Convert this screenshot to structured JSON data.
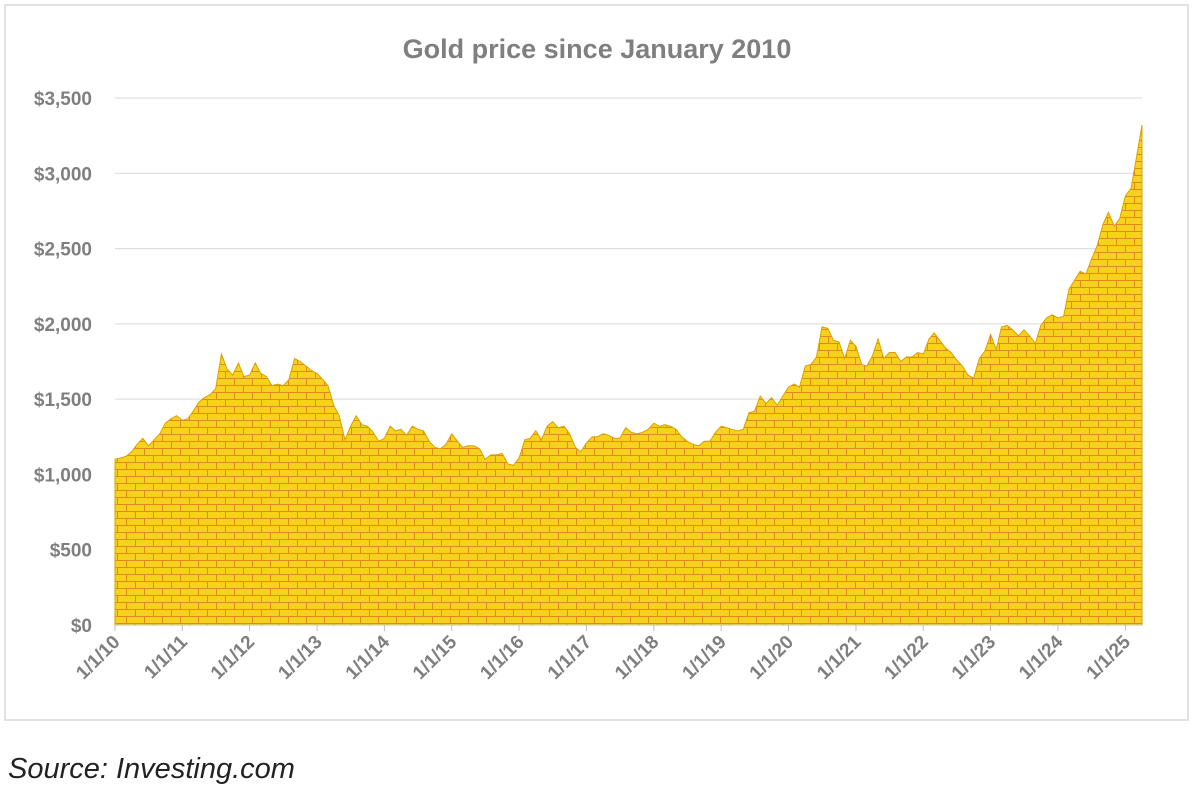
{
  "chart_data": {
    "type": "area",
    "title": "Gold price since January 2010",
    "source": "Source: Investing.com",
    "color": "#f7d21c",
    "x": [
      "2010-01-01",
      "2010-02-01",
      "2010-03-01",
      "2010-04-01",
      "2010-05-01",
      "2010-06-01",
      "2010-07-01",
      "2010-08-01",
      "2010-09-01",
      "2010-10-01",
      "2010-11-01",
      "2010-12-01",
      "2011-01-01",
      "2011-02-01",
      "2011-03-01",
      "2011-04-01",
      "2011-05-01",
      "2011-06-01",
      "2011-07-01",
      "2011-08-01",
      "2011-09-01",
      "2011-10-01",
      "2011-11-01",
      "2011-12-01",
      "2012-01-01",
      "2012-02-01",
      "2012-03-01",
      "2012-04-01",
      "2012-05-01",
      "2012-06-01",
      "2012-07-01",
      "2012-08-01",
      "2012-09-01",
      "2012-10-01",
      "2012-11-01",
      "2012-12-01",
      "2013-01-01",
      "2013-02-01",
      "2013-03-01",
      "2013-04-01",
      "2013-05-01",
      "2013-06-01",
      "2013-07-01",
      "2013-08-01",
      "2013-09-01",
      "2013-10-01",
      "2013-11-01",
      "2013-12-01",
      "2014-01-01",
      "2014-02-01",
      "2014-03-01",
      "2014-04-01",
      "2014-05-01",
      "2014-06-01",
      "2014-07-01",
      "2014-08-01",
      "2014-09-01",
      "2014-10-01",
      "2014-11-01",
      "2014-12-01",
      "2015-01-01",
      "2015-02-01",
      "2015-03-01",
      "2015-04-01",
      "2015-05-01",
      "2015-06-01",
      "2015-07-01",
      "2015-08-01",
      "2015-09-01",
      "2015-10-01",
      "2015-11-01",
      "2015-12-01",
      "2016-01-01",
      "2016-02-01",
      "2016-03-01",
      "2016-04-01",
      "2016-05-01",
      "2016-06-01",
      "2016-07-01",
      "2016-08-01",
      "2016-09-01",
      "2016-10-01",
      "2016-11-01",
      "2016-12-01",
      "2017-01-01",
      "2017-02-01",
      "2017-03-01",
      "2017-04-01",
      "2017-05-01",
      "2017-06-01",
      "2017-07-01",
      "2017-08-01",
      "2017-09-01",
      "2017-10-01",
      "2017-11-01",
      "2017-12-01",
      "2018-01-01",
      "2018-02-01",
      "2018-03-01",
      "2018-04-01",
      "2018-05-01",
      "2018-06-01",
      "2018-07-01",
      "2018-08-01",
      "2018-09-01",
      "2018-10-01",
      "2018-11-01",
      "2018-12-01",
      "2019-01-01",
      "2019-02-01",
      "2019-03-01",
      "2019-04-01",
      "2019-05-01",
      "2019-06-01",
      "2019-07-01",
      "2019-08-01",
      "2019-09-01",
      "2019-10-01",
      "2019-11-01",
      "2019-12-01",
      "2020-01-01",
      "2020-02-01",
      "2020-03-01",
      "2020-04-01",
      "2020-05-01",
      "2020-06-01",
      "2020-07-01",
      "2020-08-01",
      "2020-09-01",
      "2020-10-01",
      "2020-11-01",
      "2020-12-01",
      "2021-01-01",
      "2021-02-01",
      "2021-03-01",
      "2021-04-01",
      "2021-05-01",
      "2021-06-01",
      "2021-07-01",
      "2021-08-01",
      "2021-09-01",
      "2021-10-01",
      "2021-11-01",
      "2021-12-01",
      "2022-01-01",
      "2022-02-01",
      "2022-03-01",
      "2022-04-01",
      "2022-05-01",
      "2022-06-01",
      "2022-07-01",
      "2022-08-01",
      "2022-09-01",
      "2022-10-01",
      "2022-11-01",
      "2022-12-01",
      "2023-01-01",
      "2023-02-01",
      "2023-03-01",
      "2023-04-01",
      "2023-05-01",
      "2023-06-01",
      "2023-07-01",
      "2023-08-01",
      "2023-09-01",
      "2023-10-01",
      "2023-11-01",
      "2023-12-01",
      "2024-01-01",
      "2024-02-01",
      "2024-03-01",
      "2024-04-01",
      "2024-05-01",
      "2024-06-01",
      "2024-07-01",
      "2024-08-01",
      "2024-09-01",
      "2024-10-01",
      "2024-11-01",
      "2024-12-01",
      "2025-01-01",
      "2025-02-01",
      "2025-03-01",
      "2025-04-01"
    ],
    "values": [
      1100,
      1110,
      1120,
      1150,
      1200,
      1240,
      1190,
      1230,
      1270,
      1340,
      1370,
      1390,
      1360,
      1370,
      1420,
      1480,
      1510,
      1530,
      1570,
      1800,
      1700,
      1660,
      1740,
      1650,
      1660,
      1740,
      1670,
      1650,
      1590,
      1600,
      1590,
      1630,
      1770,
      1750,
      1720,
      1690,
      1670,
      1630,
      1590,
      1460,
      1390,
      1230,
      1320,
      1390,
      1330,
      1320,
      1280,
      1220,
      1240,
      1320,
      1290,
      1300,
      1260,
      1320,
      1300,
      1290,
      1220,
      1180,
      1170,
      1200,
      1270,
      1220,
      1180,
      1190,
      1190,
      1170,
      1100,
      1130,
      1130,
      1140,
      1070,
      1060,
      1110,
      1230,
      1240,
      1290,
      1230,
      1320,
      1350,
      1310,
      1320,
      1270,
      1180,
      1150,
      1210,
      1250,
      1250,
      1270,
      1260,
      1240,
      1240,
      1310,
      1280,
      1270,
      1280,
      1300,
      1340,
      1320,
      1330,
      1320,
      1300,
      1250,
      1220,
      1200,
      1190,
      1220,
      1220,
      1280,
      1320,
      1310,
      1300,
      1290,
      1300,
      1410,
      1420,
      1520,
      1470,
      1510,
      1460,
      1520,
      1580,
      1600,
      1580,
      1720,
      1730,
      1780,
      1980,
      1970,
      1890,
      1880,
      1770,
      1890,
      1850,
      1730,
      1720,
      1790,
      1900,
      1770,
      1810,
      1810,
      1750,
      1780,
      1780,
      1810,
      1800,
      1900,
      1940,
      1890,
      1840,
      1810,
      1760,
      1720,
      1660,
      1640,
      1770,
      1820,
      1930,
      1830,
      1980,
      1990,
      1960,
      1920,
      1960,
      1920,
      1870,
      1990,
      2040,
      2060,
      2040,
      2050,
      2230,
      2290,
      2350,
      2330,
      2430,
      2520,
      2660,
      2740,
      2650,
      2700,
      2850,
      2900,
      3100,
      3320
    ],
    "xlim": [
      "2010-01-01",
      "2025-04-01"
    ],
    "xticks": [
      {
        "value": "2010-01-01",
        "label": "1/1/10"
      },
      {
        "value": "2011-01-01",
        "label": "1/1/11"
      },
      {
        "value": "2012-01-01",
        "label": "1/1/12"
      },
      {
        "value": "2013-01-01",
        "label": "1/1/13"
      },
      {
        "value": "2014-01-01",
        "label": "1/1/14"
      },
      {
        "value": "2015-01-01",
        "label": "1/1/15"
      },
      {
        "value": "2016-01-01",
        "label": "1/1/16"
      },
      {
        "value": "2017-01-01",
        "label": "1/1/17"
      },
      {
        "value": "2018-01-01",
        "label": "1/1/18"
      },
      {
        "value": "2019-01-01",
        "label": "1/1/19"
      },
      {
        "value": "2020-01-01",
        "label": "1/1/20"
      },
      {
        "value": "2021-01-01",
        "label": "1/1/21"
      },
      {
        "value": "2022-01-01",
        "label": "1/1/22"
      },
      {
        "value": "2023-01-01",
        "label": "1/1/23"
      },
      {
        "value": "2024-01-01",
        "label": "1/1/24"
      },
      {
        "value": "2025-01-01",
        "label": "1/1/25"
      }
    ],
    "ylim": [
      0,
      3500
    ],
    "yticks": [
      {
        "value": 0,
        "label": "$0"
      },
      {
        "value": 500,
        "label": "$500"
      },
      {
        "value": 1000,
        "label": "$1,000"
      },
      {
        "value": 1500,
        "label": "$1,500"
      },
      {
        "value": 2000,
        "label": "$2,000"
      },
      {
        "value": 2500,
        "label": "$2,500"
      },
      {
        "value": 3000,
        "label": "$3,000"
      },
      {
        "value": 3500,
        "label": "$3,500"
      }
    ],
    "grid": true
  }
}
